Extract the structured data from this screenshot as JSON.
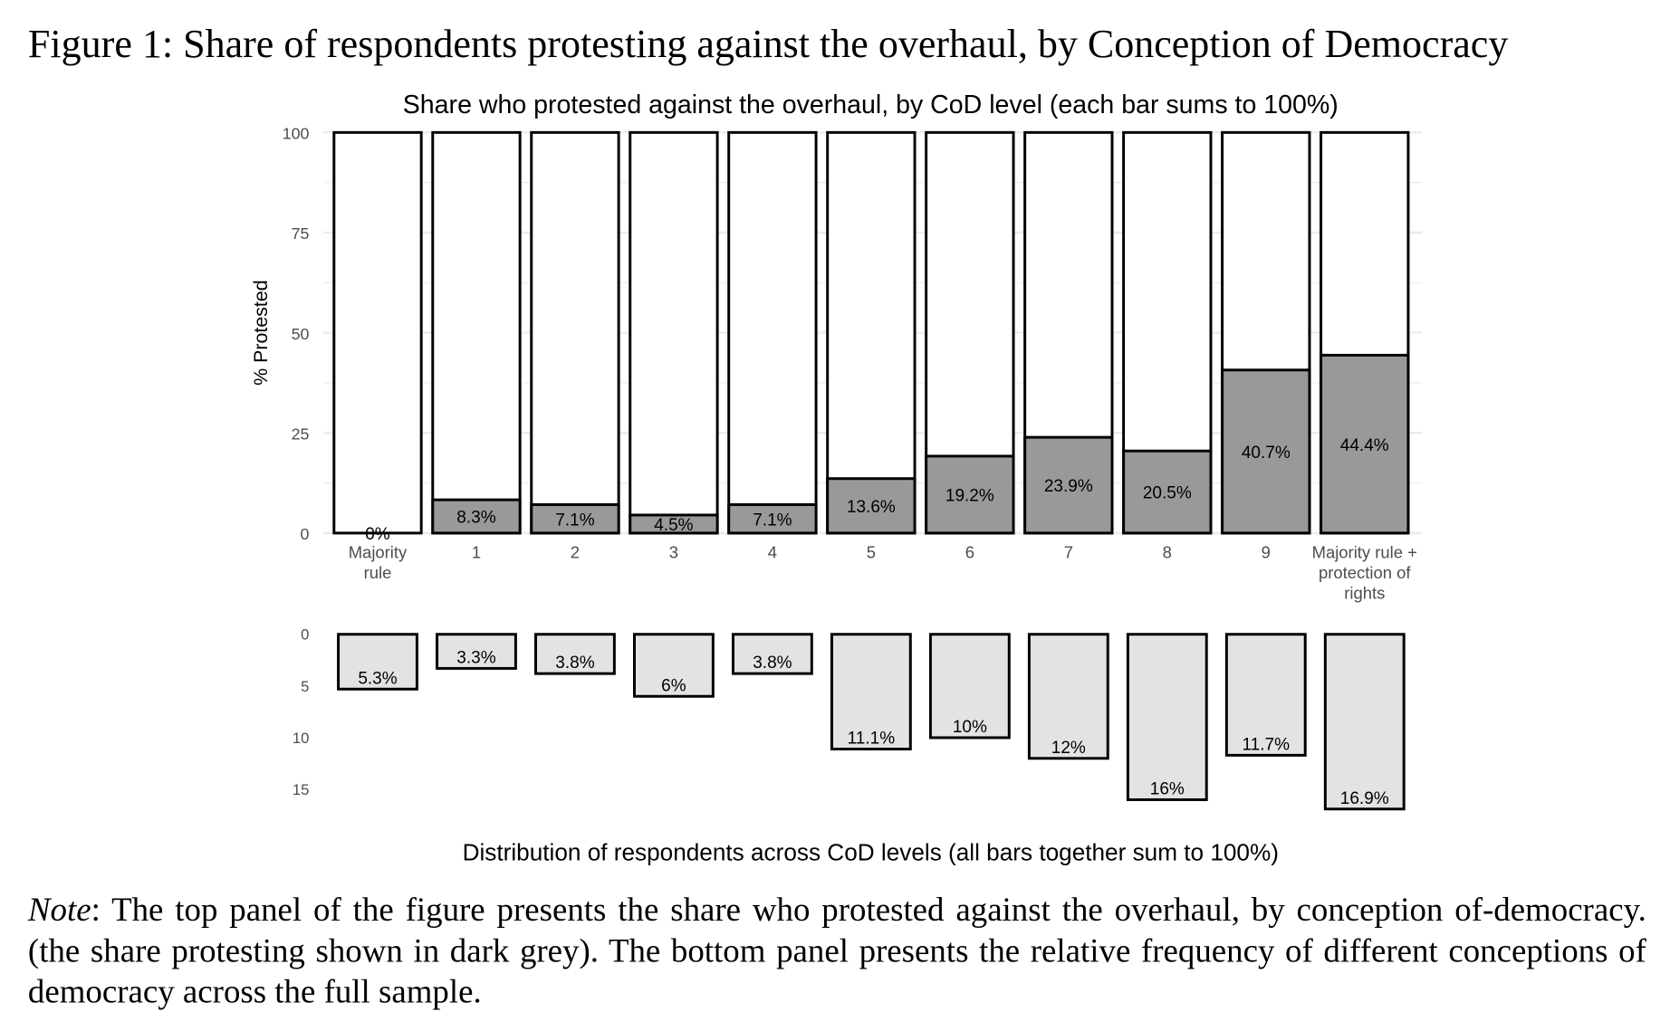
{
  "figure": {
    "caption": "Figure 1: Share of respondents protesting against the overhaul, by Conception of Democracy",
    "note_label": "Note",
    "note_text": ": The top panel of the figure presents the share who protested against the overhaul, by conception of-democracy. (the share protesting shown in dark grey). The bottom panel presents the relative frequency of different conceptions of democracy across the full sample."
  },
  "chart_data": [
    {
      "type": "bar",
      "stacked": true,
      "title": "Share who protested against the overhaul, by CoD level (each bar sums to 100%)",
      "xlabel": "",
      "ylabel": "% Protested",
      "ylim": [
        0,
        100
      ],
      "yticks": [
        "0",
        "25",
        "50",
        "75",
        "100"
      ],
      "grid": true,
      "categories": [
        "Majority rule",
        "1",
        "2",
        "3",
        "4",
        "5",
        "6",
        "7",
        "8",
        "9",
        "Majority rule + protection of rights"
      ],
      "values": [
        0,
        8.3,
        7.1,
        4.5,
        7.1,
        13.6,
        19.2,
        23.9,
        20.5,
        40.7,
        44.4
      ],
      "labels": [
        "0%",
        "8.3%",
        "7.1%",
        "4.5%",
        "7.1%",
        "13.6%",
        "19.2%",
        "23.9%",
        "20.5%",
        "40.7%",
        "44.4%"
      ],
      "colors": {
        "protested": "#999999",
        "remainder": "#ffffff",
        "outline": "#000000"
      }
    },
    {
      "type": "bar",
      "orientation": "downward",
      "xlabel": "Distribution of respondents across CoD levels (all bars together sum to 100%)",
      "ylim": [
        0,
        17
      ],
      "yticks": [
        "0",
        "5",
        "10",
        "15"
      ],
      "values": [
        5.3,
        3.3,
        3.8,
        6,
        3.8,
        11.1,
        10,
        12,
        16,
        11.7,
        16.9
      ],
      "labels": [
        "5.3%",
        "3.3%",
        "3.8%",
        "6%",
        "3.8%",
        "11.1%",
        "10%",
        "12%",
        "16%",
        "11.7%",
        "16.9%"
      ],
      "colors": {
        "fill": "#e3e3e3",
        "outline": "#000000"
      }
    }
  ]
}
